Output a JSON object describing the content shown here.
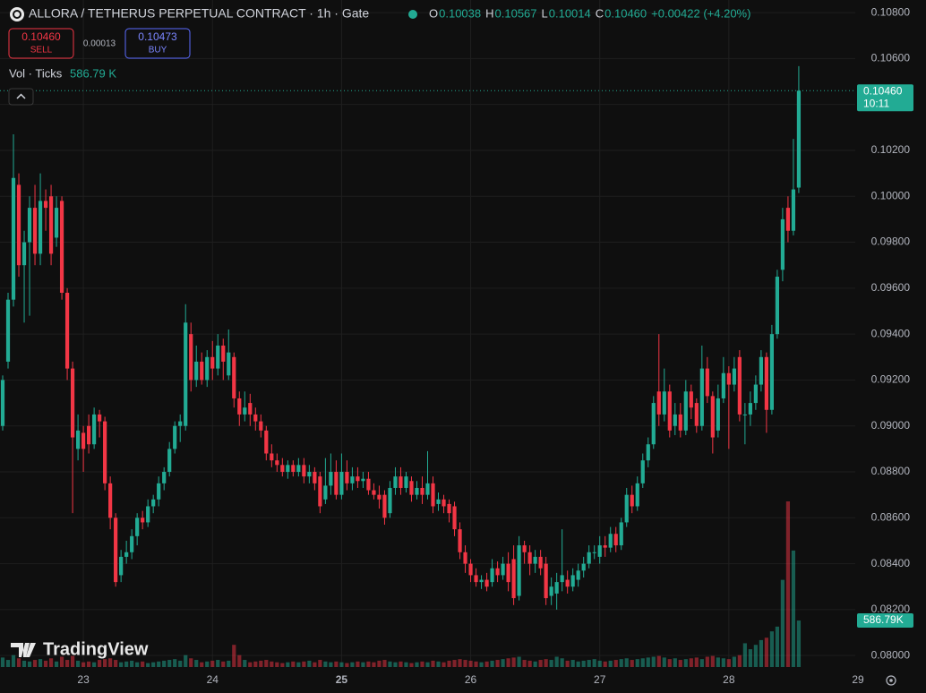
{
  "chart_data": {
    "type": "candlestick",
    "title": "ALLORA / TETHERUS PERPETUAL CONTRACT · 1h · Gate",
    "ohlc_labels": [
      "O",
      "H",
      "L",
      "C"
    ],
    "header_values": [
      "0.10038",
      "0.10567",
      "0.10014",
      "0.10460"
    ],
    "change": "+0.00422 (+4.20%)",
    "sell_price": "0.10460",
    "sell_label": "SELL",
    "spread": "0.00013",
    "buy_price": "0.10473",
    "buy_label": "BUY",
    "volume_legend": "Vol · Ticks",
    "volume_legend_value": "586.79 K",
    "price_tag": "0.10460",
    "countdown": "10:11",
    "volume_tag": "586.79K",
    "watermark": "TradingView",
    "colors": {
      "up": "#22ab94",
      "down": "#f23645"
    },
    "grid": true,
    "xlim": [
      -0.5,
      158.5
    ],
    "xticks": [
      {
        "value": 15,
        "label": "23"
      },
      {
        "value": 39,
        "label": "24"
      },
      {
        "value": 63,
        "label": "25"
      },
      {
        "value": 87,
        "label": "26"
      },
      {
        "value": 111,
        "label": "27"
      },
      {
        "value": 135,
        "label": "28"
      },
      {
        "value": 159,
        "label": "29"
      }
    ],
    "ylim": [
      0.0795,
      0.10855
    ],
    "yticks": [
      {
        "value": 0.108,
        "label": "0.10800"
      },
      {
        "value": 0.106,
        "label": "0.10600"
      },
      {
        "value": 0.104,
        "label": "0.10400"
      },
      {
        "value": 0.102,
        "label": "0.10200"
      },
      {
        "value": 0.1,
        "label": "0.10000"
      },
      {
        "value": 0.098,
        "label": "0.09800"
      },
      {
        "value": 0.096,
        "label": "0.09600"
      },
      {
        "value": 0.094,
        "label": "0.09400"
      },
      {
        "value": 0.092,
        "label": "0.09200"
      },
      {
        "value": 0.09,
        "label": "0.09000"
      },
      {
        "value": 0.088,
        "label": "0.08800"
      },
      {
        "value": 0.086,
        "label": "0.08600"
      },
      {
        "value": 0.084,
        "label": "0.08400"
      },
      {
        "value": 0.082,
        "label": "0.08200"
      },
      {
        "value": 0.08,
        "label": "0.08000"
      }
    ],
    "open": [
      0.09,
      0.0928,
      0.0955,
      0.1005,
      0.097,
      0.098,
      0.0995,
      0.0975,
      0.0998,
      0.1,
      0.0982,
      0.0998,
      0.0958,
      0.0925,
      0.089,
      0.0897,
      0.09,
      0.0892,
      0.0905,
      0.0902,
      0.0875,
      0.086,
      0.0835,
      0.0843,
      0.0845,
      0.0852,
      0.086,
      0.0858,
      0.0865,
      0.0868,
      0.0875,
      0.088,
      0.089,
      0.09,
      0.09,
      0.094,
      0.092,
      0.0928,
      0.092,
      0.093,
      0.0925,
      0.0935,
      0.0922,
      0.093,
      0.0912,
      0.0905,
      0.091,
      0.0905,
      0.0902,
      0.0898,
      0.0888,
      0.0885,
      0.0883,
      0.088,
      0.0883,
      0.088,
      0.0883,
      0.0878,
      0.088,
      0.0878,
      0.0868,
      0.0874,
      0.088,
      0.087,
      0.088,
      0.0875,
      0.0878,
      0.0876,
      0.0877,
      0.0872,
      0.087,
      0.087,
      0.0862,
      0.0873,
      0.0878,
      0.0873,
      0.0876,
      0.087,
      0.0873,
      0.087,
      0.0875,
      0.0866,
      0.0868,
      0.0866,
      0.0865,
      0.0855,
      0.0845,
      0.084,
      0.0835,
      0.0832,
      0.0833,
      0.0832,
      0.0838,
      0.0835,
      0.084,
      0.0842,
      0.0826,
      0.0848,
      0.0845,
      0.084,
      0.0843,
      0.084,
      0.0826,
      0.0827,
      0.0832,
      0.0833,
      0.083,
      0.0833,
      0.0837,
      0.084,
      0.0845,
      0.0843,
      0.0848,
      0.0847,
      0.0853,
      0.0848,
      0.0858,
      0.087,
      0.0865,
      0.0875,
      0.0885,
      0.0892,
      0.0915,
      0.0905,
      0.0915,
      0.09,
      0.0905,
      0.0898,
      0.0915,
      0.091,
      0.09,
      0.0925,
      0.0913,
      0.0898,
      0.0912,
      0.0923,
      0.0918,
      0.093,
      0.0905,
      0.0905,
      0.091,
      0.0918,
      0.093,
      0.0907,
      0.094,
      0.0968,
      0.0995,
      0.0985,
      0.10038
    ],
    "high": [
      0.0922,
      0.0958,
      0.1027,
      0.101,
      0.0985,
      0.1,
      0.1005,
      0.101,
      0.1003,
      0.1005,
      0.1,
      0.1,
      0.096,
      0.0928,
      0.0905,
      0.09,
      0.0905,
      0.0908,
      0.0907,
      0.0904,
      0.0878,
      0.0862,
      0.0846,
      0.085,
      0.0855,
      0.0862,
      0.0863,
      0.0868,
      0.087,
      0.0878,
      0.0882,
      0.0893,
      0.0902,
      0.0905,
      0.0953,
      0.0945,
      0.0935,
      0.0932,
      0.0933,
      0.0937,
      0.094,
      0.0938,
      0.0942,
      0.0932,
      0.0915,
      0.0915,
      0.0914,
      0.0908,
      0.0905,
      0.09,
      0.0892,
      0.0888,
      0.0886,
      0.0885,
      0.0885,
      0.0886,
      0.0886,
      0.0883,
      0.0882,
      0.088,
      0.0886,
      0.0888,
      0.0885,
      0.0888,
      0.0885,
      0.0882,
      0.0882,
      0.088,
      0.088,
      0.0875,
      0.0874,
      0.0872,
      0.0876,
      0.0882,
      0.0882,
      0.088,
      0.0878,
      0.0876,
      0.0878,
      0.0889,
      0.0878,
      0.0871,
      0.087,
      0.0868,
      0.0867,
      0.0858,
      0.0848,
      0.0842,
      0.0838,
      0.0835,
      0.0836,
      0.0842,
      0.0841,
      0.0843,
      0.0845,
      0.0848,
      0.0852,
      0.085,
      0.0848,
      0.0846,
      0.0846,
      0.0843,
      0.0834,
      0.0836,
      0.0855,
      0.0837,
      0.0838,
      0.084,
      0.0843,
      0.0848,
      0.0848,
      0.0852,
      0.0852,
      0.0856,
      0.0856,
      0.086,
      0.0873,
      0.0874,
      0.0878,
      0.0888,
      0.0895,
      0.0913,
      0.094,
      0.0925,
      0.0918,
      0.091,
      0.091,
      0.092,
      0.0918,
      0.0912,
      0.0935,
      0.093,
      0.0915,
      0.0918,
      0.093,
      0.0926,
      0.093,
      0.0933,
      0.091,
      0.0915,
      0.0922,
      0.0933,
      0.0932,
      0.0944,
      0.0968,
      0.0995,
      0.1,
      0.1025,
      0.10567
    ],
    "low": [
      0.0898,
      0.0925,
      0.0952,
      0.0965,
      0.0945,
      0.0948,
      0.097,
      0.097,
      0.0985,
      0.097,
      0.0978,
      0.0955,
      0.092,
      0.0862,
      0.0885,
      0.088,
      0.0888,
      0.089,
      0.0895,
      0.0872,
      0.0855,
      0.083,
      0.0832,
      0.084,
      0.0842,
      0.0848,
      0.0855,
      0.0856,
      0.0862,
      0.0865,
      0.0872,
      0.0878,
      0.0888,
      0.0893,
      0.0898,
      0.0915,
      0.0917,
      0.0918,
      0.0917,
      0.092,
      0.0922,
      0.092,
      0.092,
      0.0908,
      0.09,
      0.0902,
      0.09,
      0.0898,
      0.0895,
      0.0885,
      0.0882,
      0.088,
      0.0878,
      0.0877,
      0.0878,
      0.0878,
      0.0875,
      0.0875,
      0.0872,
      0.0862,
      0.0866,
      0.087,
      0.0868,
      0.0868,
      0.0872,
      0.0872,
      0.0873,
      0.0873,
      0.087,
      0.0868,
      0.0864,
      0.0857,
      0.086,
      0.087,
      0.087,
      0.0871,
      0.0867,
      0.0868,
      0.0866,
      0.0868,
      0.0862,
      0.0863,
      0.0862,
      0.0858,
      0.0852,
      0.0842,
      0.0836,
      0.0832,
      0.083,
      0.0829,
      0.0828,
      0.083,
      0.0832,
      0.0833,
      0.0828,
      0.0822,
      0.0824,
      0.084,
      0.0835,
      0.0836,
      0.0835,
      0.0822,
      0.0822,
      0.082,
      0.0828,
      0.0827,
      0.0828,
      0.083,
      0.0834,
      0.0838,
      0.0842,
      0.084,
      0.0843,
      0.0845,
      0.0845,
      0.0846,
      0.0856,
      0.0862,
      0.0863,
      0.0873,
      0.0882,
      0.089,
      0.09,
      0.0902,
      0.0895,
      0.0896,
      0.0895,
      0.0896,
      0.0903,
      0.0897,
      0.0898,
      0.091,
      0.0888,
      0.0895,
      0.091,
      0.089,
      0.0915,
      0.0902,
      0.0892,
      0.09,
      0.0907,
      0.0915,
      0.0897,
      0.0905,
      0.0938,
      0.0963,
      0.098,
      0.0983,
      0.10014
    ],
    "close": [
      0.092,
      0.0955,
      0.1008,
      0.097,
      0.098,
      0.0995,
      0.0975,
      0.0998,
      0.0995,
      0.0975,
      0.0995,
      0.0958,
      0.0925,
      0.0895,
      0.0898,
      0.089,
      0.0892,
      0.0905,
      0.0902,
      0.0875,
      0.086,
      0.0832,
      0.0843,
      0.0845,
      0.0852,
      0.086,
      0.0858,
      0.0865,
      0.0868,
      0.0875,
      0.088,
      0.089,
      0.09,
      0.0902,
      0.0945,
      0.092,
      0.0928,
      0.092,
      0.093,
      0.0925,
      0.0935,
      0.0928,
      0.0932,
      0.0912,
      0.0905,
      0.0908,
      0.0905,
      0.0902,
      0.0898,
      0.0888,
      0.0885,
      0.0883,
      0.088,
      0.0883,
      0.088,
      0.0883,
      0.0878,
      0.088,
      0.0875,
      0.0865,
      0.0874,
      0.088,
      0.087,
      0.088,
      0.0875,
      0.0878,
      0.0876,
      0.0877,
      0.0872,
      0.087,
      0.0868,
      0.086,
      0.0873,
      0.0878,
      0.0873,
      0.0878,
      0.087,
      0.0873,
      0.087,
      0.0875,
      0.0865,
      0.0868,
      0.0865,
      0.0862,
      0.0855,
      0.0845,
      0.084,
      0.0835,
      0.0832,
      0.0833,
      0.083,
      0.0838,
      0.0835,
      0.084,
      0.0832,
      0.0825,
      0.0848,
      0.0845,
      0.084,
      0.0843,
      0.0838,
      0.0825,
      0.083,
      0.0832,
      0.0835,
      0.083,
      0.0835,
      0.0837,
      0.084,
      0.0845,
      0.0845,
      0.0848,
      0.0847,
      0.0853,
      0.0848,
      0.0858,
      0.087,
      0.0865,
      0.0875,
      0.0885,
      0.0892,
      0.091,
      0.0905,
      0.0915,
      0.0898,
      0.0905,
      0.0898,
      0.0915,
      0.0908,
      0.09,
      0.0925,
      0.0913,
      0.0895,
      0.0912,
      0.0923,
      0.0918,
      0.0925,
      0.0905,
      0.0905,
      0.091,
      0.0918,
      0.093,
      0.0907,
      0.094,
      0.0965,
      0.099,
      0.0985,
      0.1003,
      0.1046
    ],
    "volume": [
      120,
      90,
      150,
      110,
      80,
      70,
      90,
      100,
      80,
      110,
      70,
      130,
      90,
      140,
      80,
      60,
      70,
      60,
      90,
      100,
      110,
      90,
      60,
      70,
      80,
      60,
      70,
      50,
      60,
      70,
      80,
      90,
      100,
      80,
      150,
      110,
      90,
      60,
      70,
      80,
      90,
      70,
      80,
      280,
      150,
      90,
      60,
      70,
      80,
      90,
      70,
      60,
      50,
      60,
      70,
      60,
      70,
      80,
      60,
      90,
      70,
      60,
      70,
      60,
      50,
      60,
      70,
      60,
      70,
      60,
      80,
      90,
      70,
      60,
      70,
      60,
      50,
      60,
      70,
      60,
      80,
      70,
      60,
      80,
      90,
      100,
      90,
      80,
      70,
      60,
      70,
      80,
      90,
      100,
      110,
      120,
      130,
      90,
      80,
      70,
      90,
      100,
      90,
      130,
      110,
      80,
      90,
      70,
      80,
      90,
      100,
      80,
      70,
      80,
      90,
      100,
      110,
      90,
      100,
      110,
      120,
      130,
      140,
      120,
      100,
      110,
      90,
      100,
      110,
      120,
      100,
      130,
      140,
      120,
      110,
      100,
      130,
      150,
      300,
      225,
      280,
      340,
      370,
      450,
      510,
      1100,
      2090,
      1470,
      586.79
    ]
  }
}
